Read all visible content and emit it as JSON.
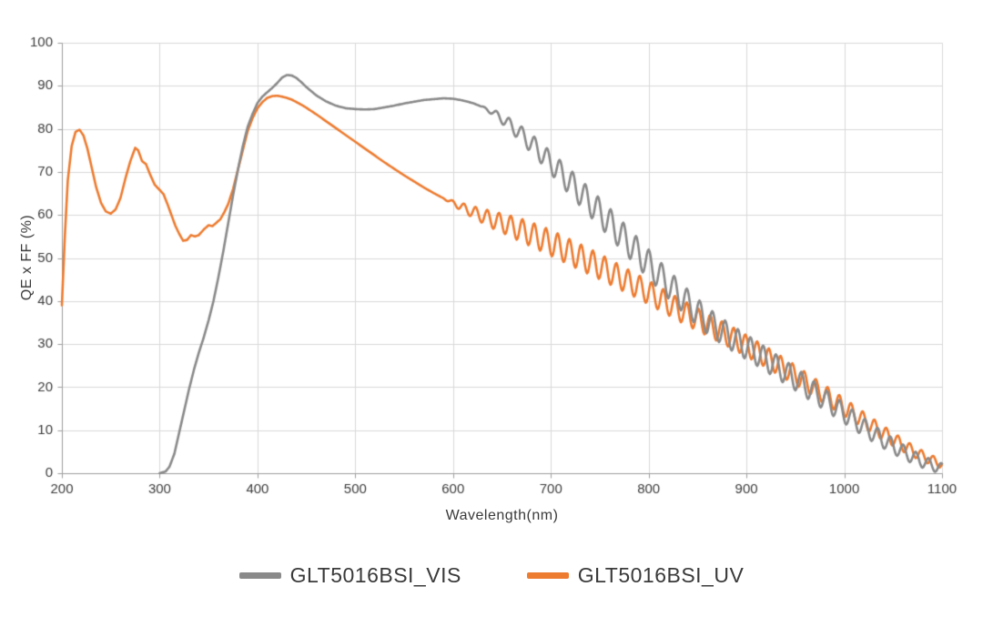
{
  "chart_data": {
    "type": "line",
    "title": "",
    "xlabel": "Wavelength(nm)",
    "ylabel": "QE x FF (%)",
    "xlim": [
      200,
      1100
    ],
    "ylim": [
      0,
      100
    ],
    "x_ticks": [
      200,
      300,
      400,
      500,
      600,
      700,
      800,
      900,
      1000,
      1100
    ],
    "y_ticks": [
      0,
      10,
      20,
      30,
      40,
      50,
      60,
      70,
      80,
      90,
      100
    ],
    "grid": true,
    "legend_position": "bottom",
    "colors": {
      "grid": "#d9d9d9",
      "axis": "#9e9e9e",
      "tick_text": "#3d3d3d",
      "background": "#ffffff"
    },
    "series": [
      {
        "name": "GLT5016BSI_VIS",
        "color": "#8a8a8a",
        "points": [
          [
            300,
            0
          ],
          [
            306,
            0.4
          ],
          [
            310,
            1.5
          ],
          [
            315,
            4.5
          ],
          [
            320,
            9.5
          ],
          [
            325,
            14.5
          ],
          [
            330,
            19.5
          ],
          [
            335,
            24
          ],
          [
            340,
            28
          ],
          [
            345,
            31.5
          ],
          [
            350,
            35.5
          ],
          [
            355,
            40
          ],
          [
            360,
            45.5
          ],
          [
            365,
            51.5
          ],
          [
            370,
            58
          ],
          [
            375,
            64.5
          ],
          [
            380,
            70.5
          ],
          [
            385,
            76
          ],
          [
            390,
            80.5
          ],
          [
            395,
            83.5
          ],
          [
            400,
            86
          ],
          [
            405,
            87.5
          ],
          [
            410,
            88.5
          ],
          [
            415,
            89.5
          ],
          [
            420,
            90.6
          ],
          [
            425,
            91.9
          ],
          [
            430,
            92.5
          ],
          [
            435,
            92.4
          ],
          [
            440,
            91.8
          ],
          [
            445,
            90.8
          ],
          [
            450,
            89.7
          ],
          [
            460,
            87.8
          ],
          [
            470,
            86.4
          ],
          [
            480,
            85.4
          ],
          [
            490,
            84.8
          ],
          [
            500,
            84.6
          ],
          [
            510,
            84.5
          ],
          [
            520,
            84.6
          ],
          [
            530,
            85
          ],
          [
            540,
            85.4
          ],
          [
            550,
            85.9
          ],
          [
            560,
            86.3
          ],
          [
            570,
            86.7
          ],
          [
            580,
            86.9
          ],
          [
            590,
            87.1
          ],
          [
            600,
            87
          ],
          [
            610,
            86.6
          ],
          [
            620,
            86
          ],
          [
            630,
            85.1
          ],
          [
            640,
            83.9
          ],
          [
            650,
            82.4
          ],
          [
            660,
            80.6
          ],
          [
            670,
            78.7
          ],
          [
            680,
            76.6
          ],
          [
            690,
            74.4
          ],
          [
            700,
            72.1
          ],
          [
            710,
            69.8
          ],
          [
            720,
            67.5
          ],
          [
            730,
            65.2
          ],
          [
            740,
            62.9
          ],
          [
            750,
            60.6
          ],
          [
            760,
            58.2
          ],
          [
            770,
            55.8
          ],
          [
            780,
            53.4
          ],
          [
            790,
            51
          ],
          [
            800,
            48.6
          ],
          [
            810,
            46.2
          ],
          [
            820,
            43.9
          ],
          [
            830,
            41.7
          ],
          [
            840,
            39.5
          ],
          [
            850,
            37.4
          ],
          [
            860,
            35.4
          ],
          [
            870,
            33.8
          ],
          [
            880,
            32.2
          ],
          [
            890,
            30.7
          ],
          [
            900,
            29.3
          ],
          [
            910,
            27.9
          ],
          [
            920,
            26.4
          ],
          [
            930,
            24.9
          ],
          [
            940,
            23.4
          ],
          [
            950,
            21.9
          ],
          [
            960,
            20.3
          ],
          [
            970,
            18.7
          ],
          [
            980,
            17.1
          ],
          [
            990,
            15.5
          ],
          [
            1000,
            13.9
          ],
          [
            1010,
            12.3
          ],
          [
            1020,
            10.7
          ],
          [
            1030,
            9.2
          ],
          [
            1040,
            7.7
          ],
          [
            1050,
            6.3
          ],
          [
            1060,
            5
          ],
          [
            1070,
            3.8
          ],
          [
            1080,
            2.7
          ],
          [
            1090,
            1.8
          ],
          [
            1100,
            1.1
          ]
        ],
        "ripple": {
          "start": 628,
          "period": 13,
          "phase": 0,
          "amps": [
            [
              628,
              0
            ],
            [
              650,
              1.2
            ],
            [
              680,
              2.2
            ],
            [
              720,
              3
            ],
            [
              760,
              3.4
            ],
            [
              800,
              3.4
            ],
            [
              840,
              3.2
            ],
            [
              880,
              3
            ],
            [
              920,
              2.8
            ],
            [
              960,
              2.6
            ],
            [
              1000,
              2.3
            ],
            [
              1050,
              1.8
            ],
            [
              1100,
              1.2
            ]
          ]
        }
      },
      {
        "name": "GLT5016BSI_UV",
        "color": "#ED7C31",
        "points": [
          [
            200,
            39
          ],
          [
            203,
            55
          ],
          [
            206,
            68
          ],
          [
            210,
            76
          ],
          [
            214,
            79.3
          ],
          [
            218,
            79.8
          ],
          [
            222,
            78.5
          ],
          [
            226,
            75.5
          ],
          [
            230,
            71.5
          ],
          [
            235,
            66.5
          ],
          [
            240,
            62.8
          ],
          [
            245,
            60.8
          ],
          [
            250,
            60.3
          ],
          [
            255,
            61.3
          ],
          [
            260,
            64
          ],
          [
            265,
            68.5
          ],
          [
            270,
            72.5
          ],
          [
            275,
            75.6
          ],
          [
            278,
            75
          ],
          [
            282,
            72.5
          ],
          [
            286,
            71.8
          ],
          [
            290,
            69.5
          ],
          [
            295,
            67
          ],
          [
            300,
            65.8
          ],
          [
            304,
            64.8
          ],
          [
            308,
            62.5
          ],
          [
            312,
            60
          ],
          [
            316,
            57.5
          ],
          [
            320,
            55.6
          ],
          [
            324,
            54
          ],
          [
            328,
            54.2
          ],
          [
            332,
            55.3
          ],
          [
            336,
            55
          ],
          [
            340,
            55.3
          ],
          [
            345,
            56.6
          ],
          [
            350,
            57.6
          ],
          [
            354,
            57.4
          ],
          [
            358,
            58.2
          ],
          [
            362,
            59
          ],
          [
            366,
            60.6
          ],
          [
            370,
            62.5
          ],
          [
            375,
            66
          ],
          [
            380,
            70.5
          ],
          [
            385,
            75
          ],
          [
            390,
            79.5
          ],
          [
            395,
            82.5
          ],
          [
            400,
            84.8
          ],
          [
            405,
            86.2
          ],
          [
            410,
            87.2
          ],
          [
            415,
            87.6
          ],
          [
            420,
            87.7
          ],
          [
            425,
            87.5
          ],
          [
            430,
            87.2
          ],
          [
            435,
            86.8
          ],
          [
            440,
            86.2
          ],
          [
            445,
            85.6
          ],
          [
            450,
            84.9
          ],
          [
            460,
            83.4
          ],
          [
            470,
            81.8
          ],
          [
            480,
            80.2
          ],
          [
            490,
            78.6
          ],
          [
            500,
            77
          ],
          [
            510,
            75.4
          ],
          [
            520,
            73.8
          ],
          [
            530,
            72.2
          ],
          [
            540,
            70.7
          ],
          [
            550,
            69.2
          ],
          [
            560,
            67.8
          ],
          [
            570,
            66.4
          ],
          [
            580,
            65.1
          ],
          [
            590,
            63.9
          ],
          [
            600,
            62.8
          ],
          [
            610,
            61.7
          ],
          [
            620,
            60.7
          ],
          [
            630,
            59.8
          ],
          [
            640,
            58.9
          ],
          [
            650,
            58.1
          ],
          [
            660,
            57.3
          ],
          [
            670,
            56.4
          ],
          [
            680,
            55.5
          ],
          [
            690,
            54.5
          ],
          [
            700,
            53.5
          ],
          [
            710,
            52.4
          ],
          [
            720,
            51.3
          ],
          [
            730,
            50.2
          ],
          [
            740,
            49.1
          ],
          [
            750,
            48
          ],
          [
            760,
            46.8
          ],
          [
            770,
            45.6
          ],
          [
            780,
            44.4
          ],
          [
            790,
            43.2
          ],
          [
            800,
            42
          ],
          [
            810,
            40.7
          ],
          [
            820,
            39.4
          ],
          [
            830,
            38.1
          ],
          [
            840,
            36.9
          ],
          [
            850,
            35.7
          ],
          [
            860,
            34.5
          ],
          [
            870,
            33.3
          ],
          [
            880,
            32.1
          ],
          [
            890,
            30.9
          ],
          [
            900,
            29.6
          ],
          [
            910,
            28.3
          ],
          [
            920,
            27
          ],
          [
            930,
            25.6
          ],
          [
            940,
            24.2
          ],
          [
            950,
            22.8
          ],
          [
            960,
            21.3
          ],
          [
            970,
            19.8
          ],
          [
            980,
            18.3
          ],
          [
            990,
            16.8
          ],
          [
            1000,
            15.3
          ],
          [
            1010,
            13.8
          ],
          [
            1020,
            12.3
          ],
          [
            1030,
            10.8
          ],
          [
            1040,
            9.3
          ],
          [
            1050,
            7.9
          ],
          [
            1060,
            6.5
          ],
          [
            1070,
            5.2
          ],
          [
            1080,
            4
          ],
          [
            1090,
            3
          ],
          [
            1100,
            2.1
          ]
        ],
        "ripple": {
          "start": 588,
          "period": 12,
          "phase": 2.1,
          "amps": [
            [
              588,
              0
            ],
            [
              610,
              1
            ],
            [
              640,
              2
            ],
            [
              670,
              2.7
            ],
            [
              700,
              3
            ],
            [
              740,
              3
            ],
            [
              780,
              2.8
            ],
            [
              820,
              2.7
            ],
            [
              860,
              2.6
            ],
            [
              900,
              2.5
            ],
            [
              950,
              2.3
            ],
            [
              1000,
              2.1
            ],
            [
              1050,
              1.6
            ],
            [
              1100,
              1
            ]
          ]
        }
      }
    ]
  }
}
